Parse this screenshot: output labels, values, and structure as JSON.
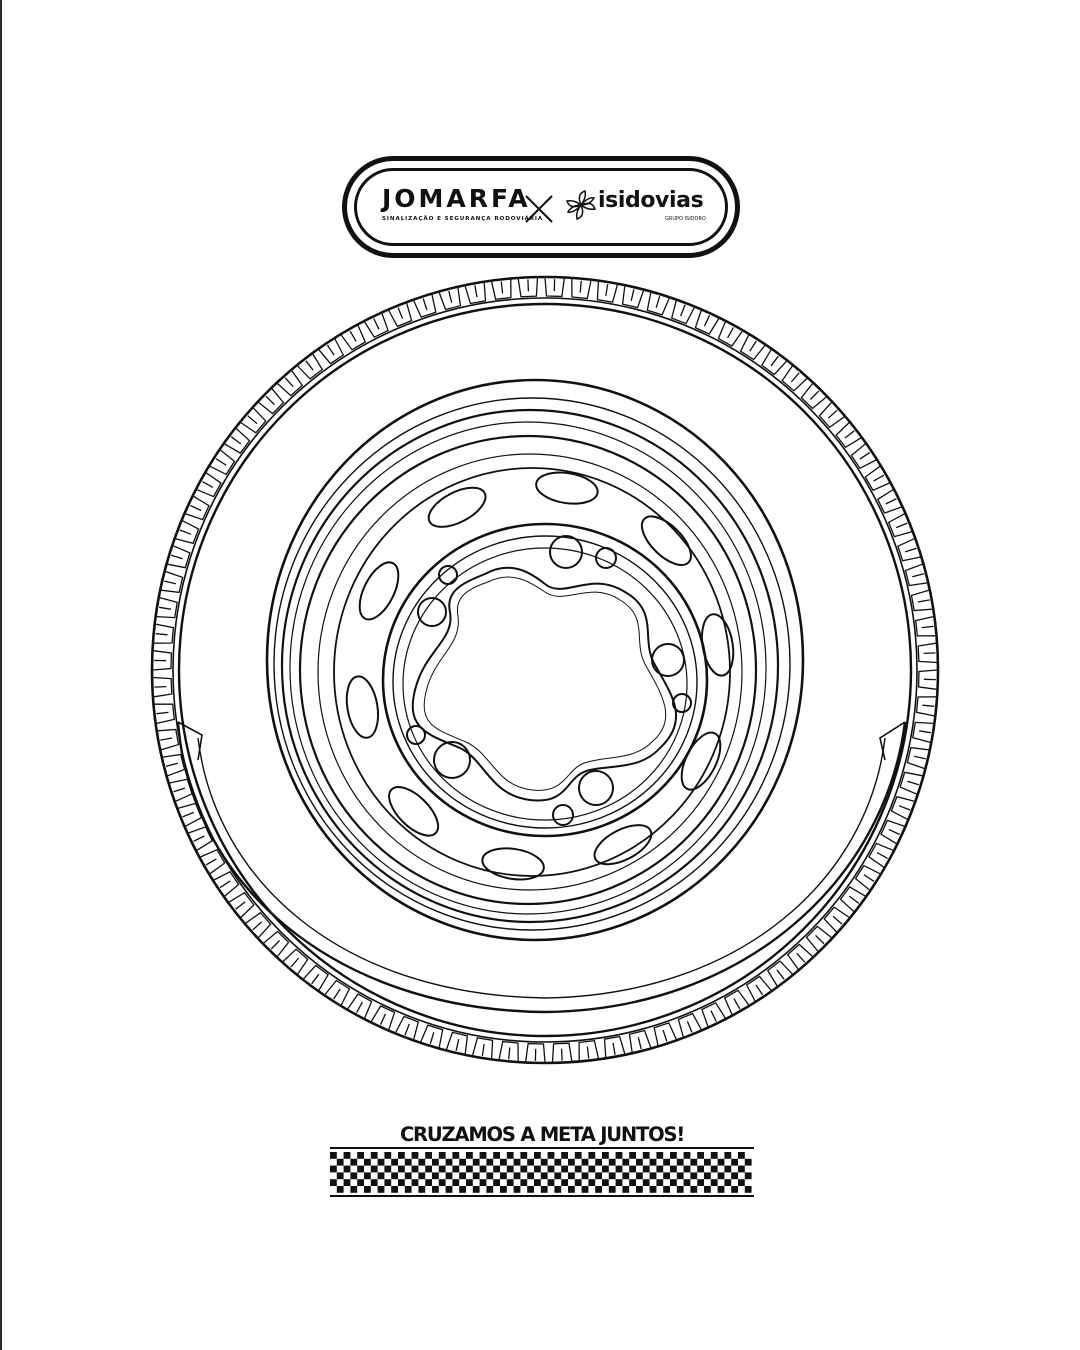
{
  "logo": {
    "left_brand": {
      "name": "JOMARFA",
      "tagline": "SINALIZAÇÃO E SEGURANÇA RODOVIÁRIA"
    },
    "right_brand": {
      "name": "isidovias",
      "subtitle": "GRUPO ISIDORO"
    },
    "separator_icon": "cross-x-icon",
    "flower_icon": "isidovias-flower-icon"
  },
  "illustration": {
    "icon": "wheel-tire-icon",
    "style": "black line art on white"
  },
  "footer": {
    "slogan": "CRUZAMOS A META JUNTOS!",
    "flag_icon": "checkered-flag-icon"
  },
  "colors": {
    "ink": "#111111",
    "background": "#ffffff"
  }
}
